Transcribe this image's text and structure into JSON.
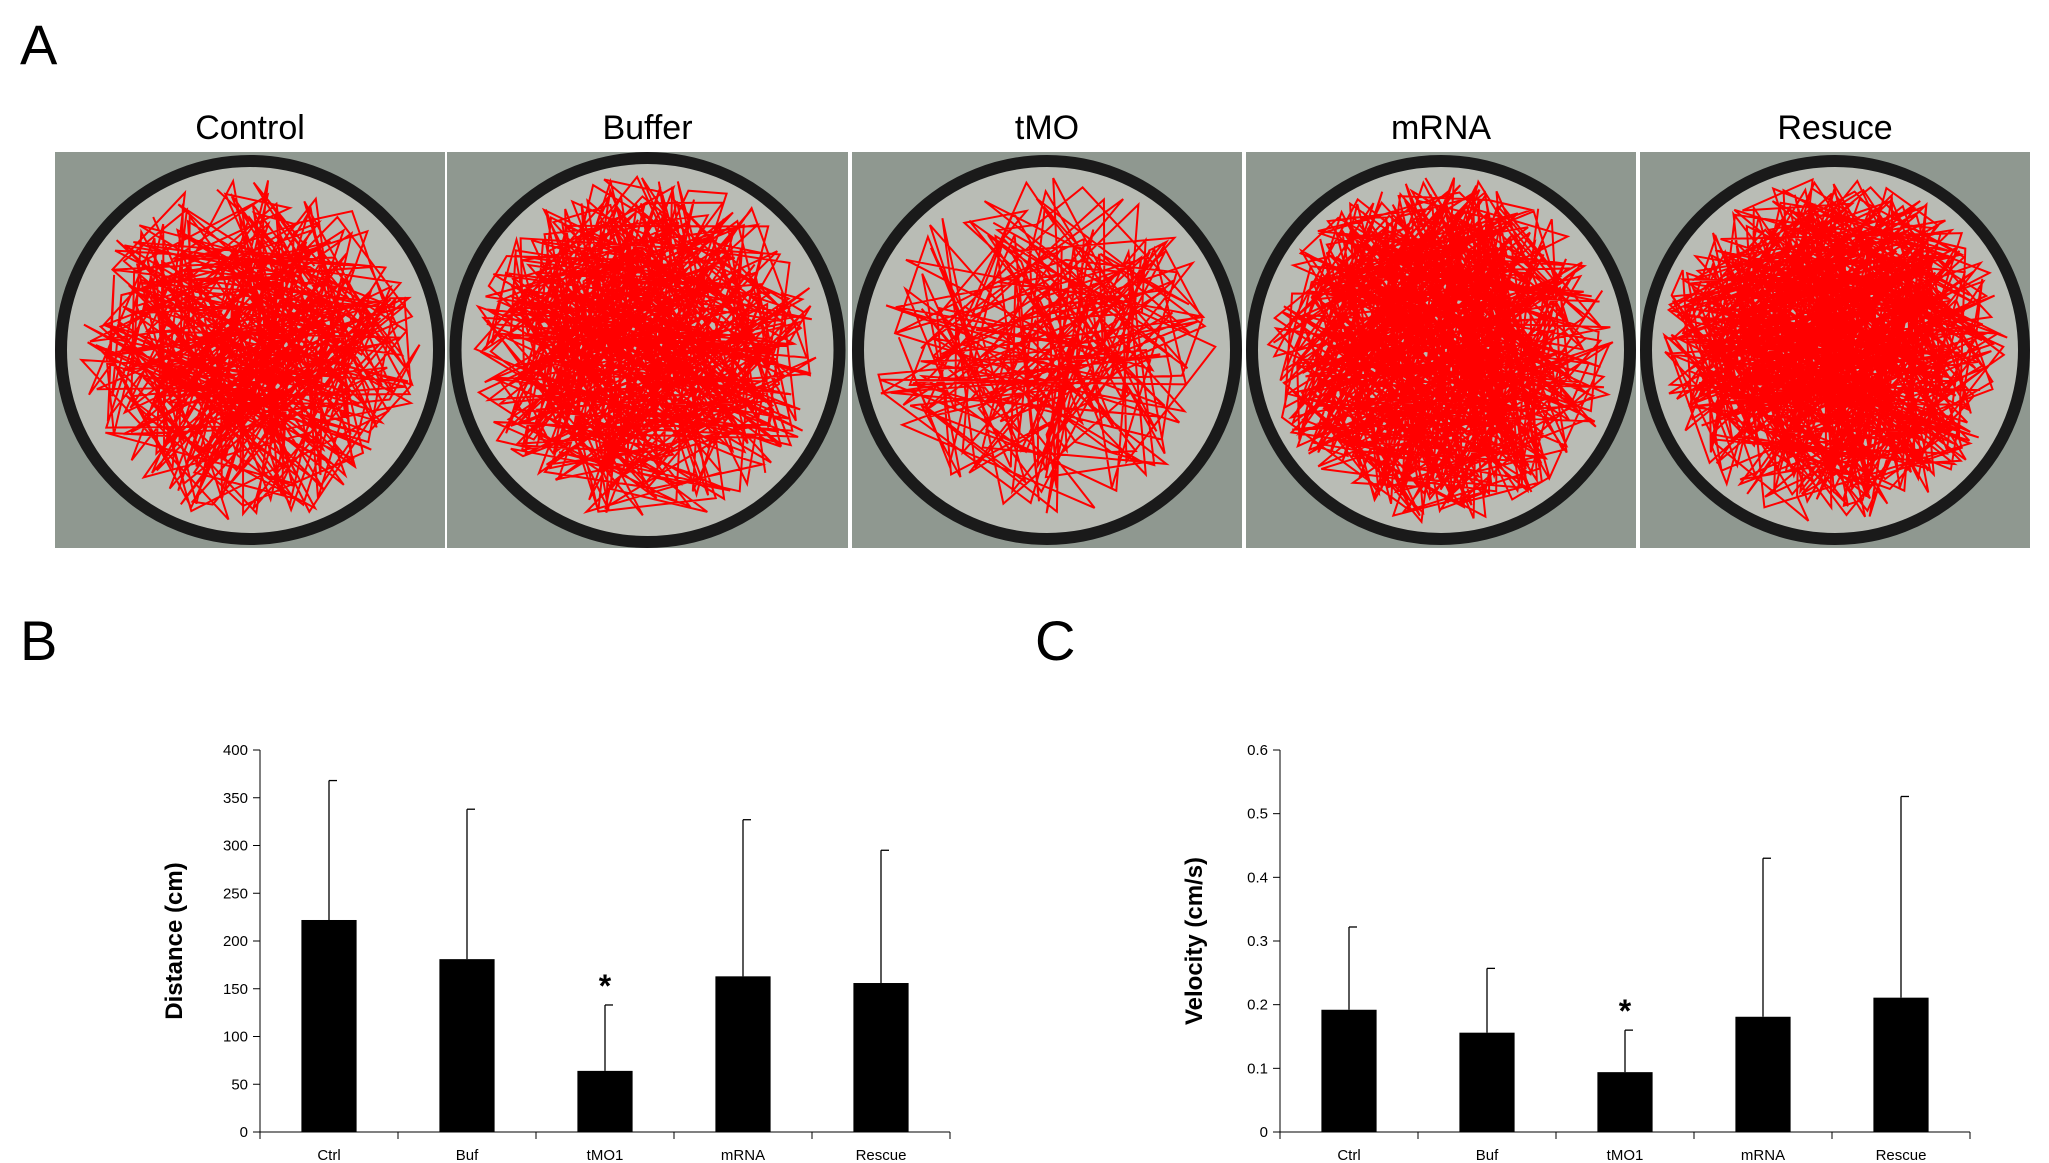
{
  "panels": {
    "a": "A",
    "b": "B",
    "c": "C"
  },
  "tracks": [
    {
      "title": "Control",
      "lines": 70,
      "seed": 11
    },
    {
      "title": "Buffer",
      "lines": 90,
      "seed": 23
    },
    {
      "title": "tMO",
      "lines": 38,
      "seed": 37
    },
    {
      "title": "mRNA",
      "lines": 110,
      "seed": 41
    },
    {
      "title": "Resuce",
      "lines": 120,
      "seed": 53
    }
  ],
  "colors": {
    "track": "#ff0000",
    "bar": "#000000",
    "dish": "#1a1a1a",
    "dish_inner": "#b9bcb5"
  },
  "chart_data": [
    {
      "type": "bar",
      "categories": [
        "Ctrl",
        "Buf",
        "tMO1",
        "mRNA",
        "Rescue"
      ],
      "values": [
        222,
        181,
        64,
        163,
        156
      ],
      "error_upper": [
        368,
        338,
        133,
        327,
        295
      ],
      "significance": [
        "",
        "",
        "*",
        "",
        ""
      ],
      "ylabel": "Distance  (cm)",
      "ylim": [
        0,
        400
      ],
      "yticks": [
        "0",
        "50",
        "100",
        "150",
        "200",
        "250",
        "300",
        "350",
        "400"
      ],
      "grid": false
    },
    {
      "type": "bar",
      "categories": [
        "Ctrl",
        "Buf",
        "tMO1",
        "mRNA",
        "Rescue"
      ],
      "values": [
        0.192,
        0.156,
        0.094,
        0.181,
        0.211
      ],
      "error_upper": [
        0.322,
        0.257,
        0.16,
        0.43,
        0.527
      ],
      "significance": [
        "",
        "",
        "*",
        "",
        ""
      ],
      "ylabel": "Velocity  (cm/s)",
      "ylim": [
        0,
        0.6
      ],
      "yticks": [
        "0",
        "0.1",
        "0.2",
        "0.3",
        "0.4",
        "0.5",
        "0.6"
      ],
      "grid": false
    }
  ]
}
